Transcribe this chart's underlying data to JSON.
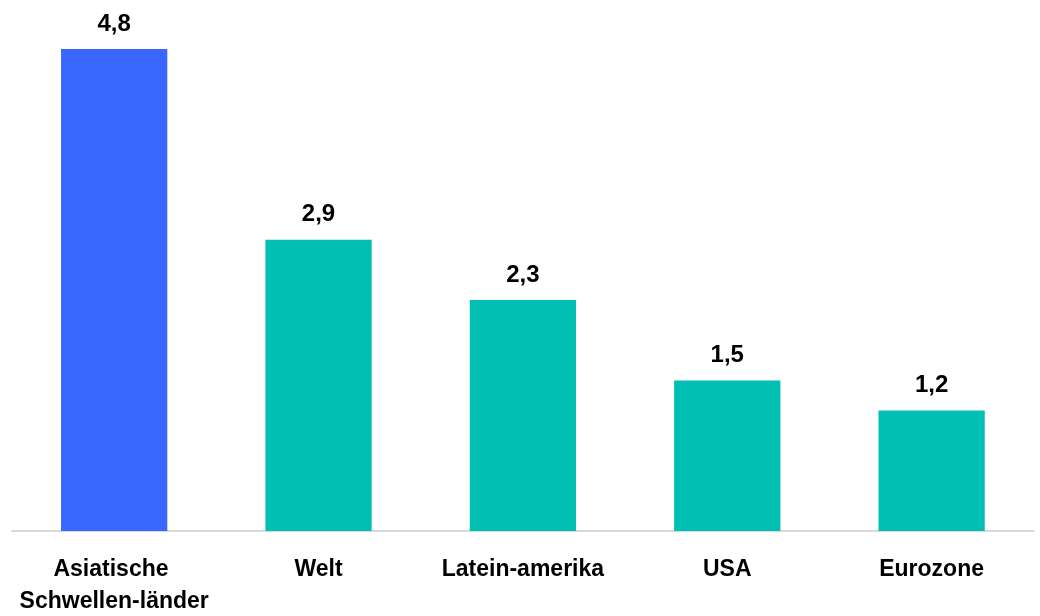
{
  "chart_data": {
    "type": "bar",
    "categories": [
      "Asiatische Schwellen-länder",
      "Welt",
      "Latein-amerika",
      "USA",
      "Eurozone"
    ],
    "values": [
      4.8,
      2.9,
      2.3,
      1.5,
      1.2
    ],
    "colors": [
      "#3a68ff",
      "#00bfb3",
      "#00bfb3",
      "#00bfb3",
      "#00bfb3"
    ],
    "value_labels": [
      "4,8",
      "2,9",
      "2,3",
      "1,5",
      "1,2"
    ],
    "tick_labels": "x"
  }
}
